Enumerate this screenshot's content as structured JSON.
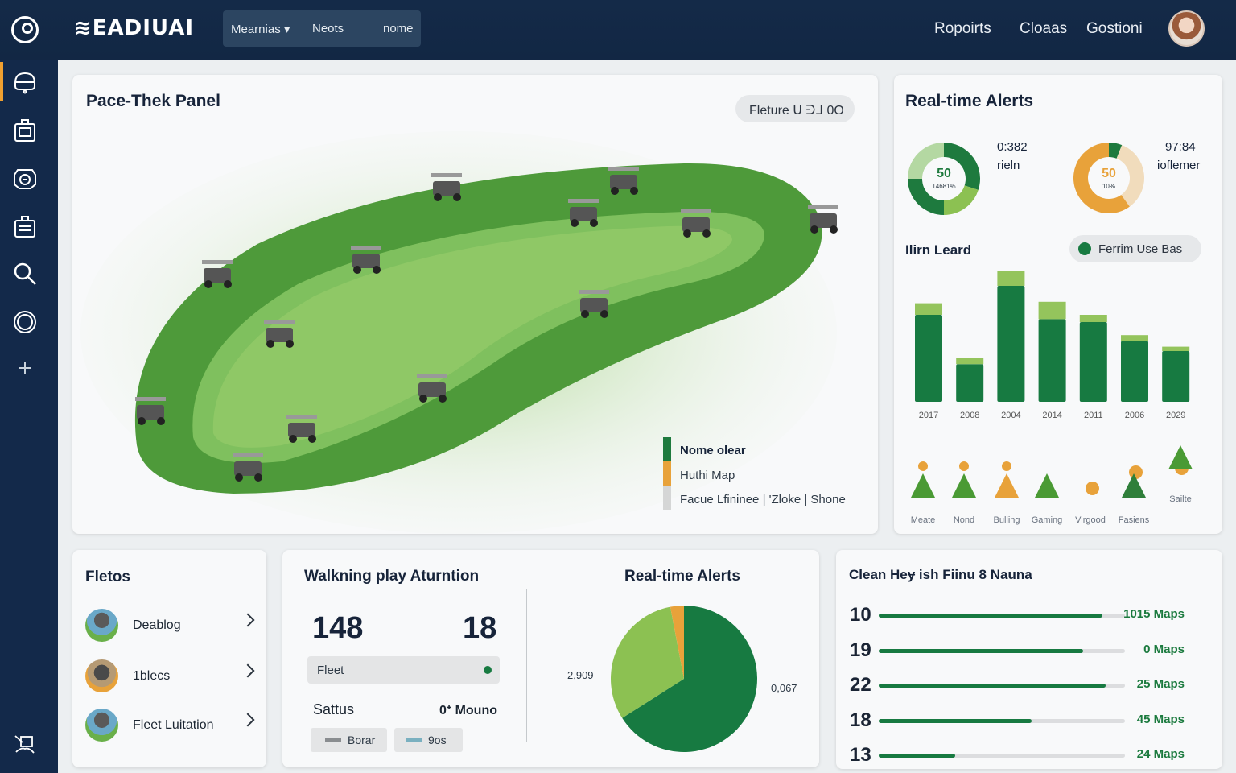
{
  "header": {
    "brand": "≋EADIUAI",
    "nav_tabs": [
      {
        "label": "Mearnias ▾"
      },
      {
        "label": "Neots"
      },
      {
        "label": "nome"
      }
    ],
    "right_links": [
      {
        "label": "Ropoirts"
      },
      {
        "label": "Cloaas"
      },
      {
        "label": "Gostioni"
      }
    ]
  },
  "sidebar": {
    "items": [
      {
        "icon": "cloud-icon",
        "active": true
      },
      {
        "icon": "cart-icon"
      },
      {
        "icon": "camera-icon"
      },
      {
        "icon": "briefcase-icon"
      },
      {
        "icon": "search-icon"
      },
      {
        "icon": "target-icon"
      },
      {
        "icon": "plus-icon"
      }
    ],
    "bottom_icon": "screen-share-icon"
  },
  "map_panel": {
    "title": "Pace-Thek Panel",
    "filter_pill": "Fleture ᑌ ᕭᒧ 0O",
    "legend": [
      {
        "label": "Nome olear",
        "color": "#1e7a3e"
      },
      {
        "label": "Huthi Map",
        "color": "#e8a23a"
      },
      {
        "label": "Facue Lfininee | 'Zloke | Shone",
        "color": "#d5d6d6"
      }
    ]
  },
  "alerts_panel": {
    "title": "Real-time Alerts",
    "donuts": [
      {
        "center_value": "50",
        "center_sub": "14681%",
        "side_value": "0:382",
        "side_label": "rieln",
        "segments": [
          30,
          20,
          25,
          25
        ],
        "colors": [
          "#1e7a3e",
          "#8cc152",
          "#1e7a3e",
          "#b4d8a2"
        ]
      },
      {
        "center_value": "50",
        "center_sub": "10%",
        "side_value": "97:84",
        "side_label": "ioflemer",
        "segments": [
          6,
          34,
          60
        ],
        "colors": [
          "#1e7a3e",
          "#f1dcbc",
          "#e8a23a"
        ]
      }
    ],
    "bar_chart": {
      "title": "Ilirn Leard",
      "legend_pill": "Ferrim Use Bas",
      "categories": [
        "2017",
        "2008",
        "2004",
        "2014",
        "2011",
        "2006",
        "2029"
      ],
      "base_values": [
        60,
        26,
        80,
        57,
        55,
        42,
        35
      ],
      "top_values": [
        8,
        4,
        10,
        12,
        5,
        4,
        3
      ]
    },
    "icons_row": [
      {
        "label": "Meate",
        "tree": "#4a9a34",
        "dot": "#e8a23a"
      },
      {
        "label": "Nond",
        "tree": "#4a9a34",
        "dot": "#e8a23a"
      },
      {
        "label": "Bulling",
        "tree": "#e8a23a",
        "dot": "#e8a23a"
      },
      {
        "label": "Gaming",
        "tree": "#4a9a34",
        "dot": null
      },
      {
        "label": "Virgood",
        "tree": null,
        "dot": "#e8a23a"
      },
      {
        "label": "Fasiens",
        "tree": "#2f7f3a",
        "dot": "#e8a23a"
      },
      {
        "label": "Sailte",
        "tree": "#4a9a34",
        "dot": "#e8a23a"
      }
    ]
  },
  "fleets_panel": {
    "title": "Fletos",
    "items": [
      {
        "label": "Deablog"
      },
      {
        "label": "1blecs"
      },
      {
        "label": "Fleet Luitation"
      }
    ]
  },
  "walking_panel": {
    "title": "Walkning play Aturntion",
    "stat_left": "148",
    "stat_right": "18",
    "fleet_field": "Fleet",
    "status_label": "Sattus",
    "status_value": "0ᐩ Mouno",
    "chips": [
      {
        "label": "Borar",
        "color": "#8a8d90"
      },
      {
        "label": "9os",
        "color": "#7ab0c0"
      }
    ]
  },
  "pie_panel": {
    "title": "Real-time Alerts",
    "label_left": "2,909",
    "label_right": "0,067"
  },
  "progress_panel": {
    "title": "Clean Heɏ ish Fiinu 8 Nauna",
    "rows": [
      {
        "num": "10",
        "value": "1015 Maps",
        "progress": 0.91
      },
      {
        "num": "19",
        "value": "0 Maps",
        "progress": 0.83
      },
      {
        "num": "22",
        "value": "25 Maps",
        "progress": 0.92
      },
      {
        "num": "18",
        "value": "45 Maps",
        "progress": 0.62
      },
      {
        "num": "13",
        "value": "24 Maps",
        "progress": 0.31
      }
    ]
  },
  "chart_data": [
    {
      "type": "bar",
      "title": "Ilirn Leard",
      "categories": [
        "2017",
        "2008",
        "2004",
        "2014",
        "2011",
        "2006",
        "2029"
      ],
      "series": [
        {
          "name": "base",
          "values": [
            60,
            26,
            80,
            57,
            55,
            42,
            35
          ]
        },
        {
          "name": "top",
          "values": [
            8,
            4,
            10,
            12,
            5,
            4,
            3
          ]
        }
      ],
      "legend": [
        "Ferrim Use Bas"
      ],
      "ylim": [
        0,
        100
      ]
    },
    {
      "type": "pie",
      "title": "Real-time Alerts",
      "slices": [
        {
          "name": "dark",
          "value": 66,
          "color": "#177a41"
        },
        {
          "name": "light",
          "value": 31,
          "color": "#8cc152"
        },
        {
          "name": "orange",
          "value": 3,
          "color": "#e8a23a"
        }
      ],
      "labels": [
        "2,909",
        "0,067"
      ]
    }
  ]
}
